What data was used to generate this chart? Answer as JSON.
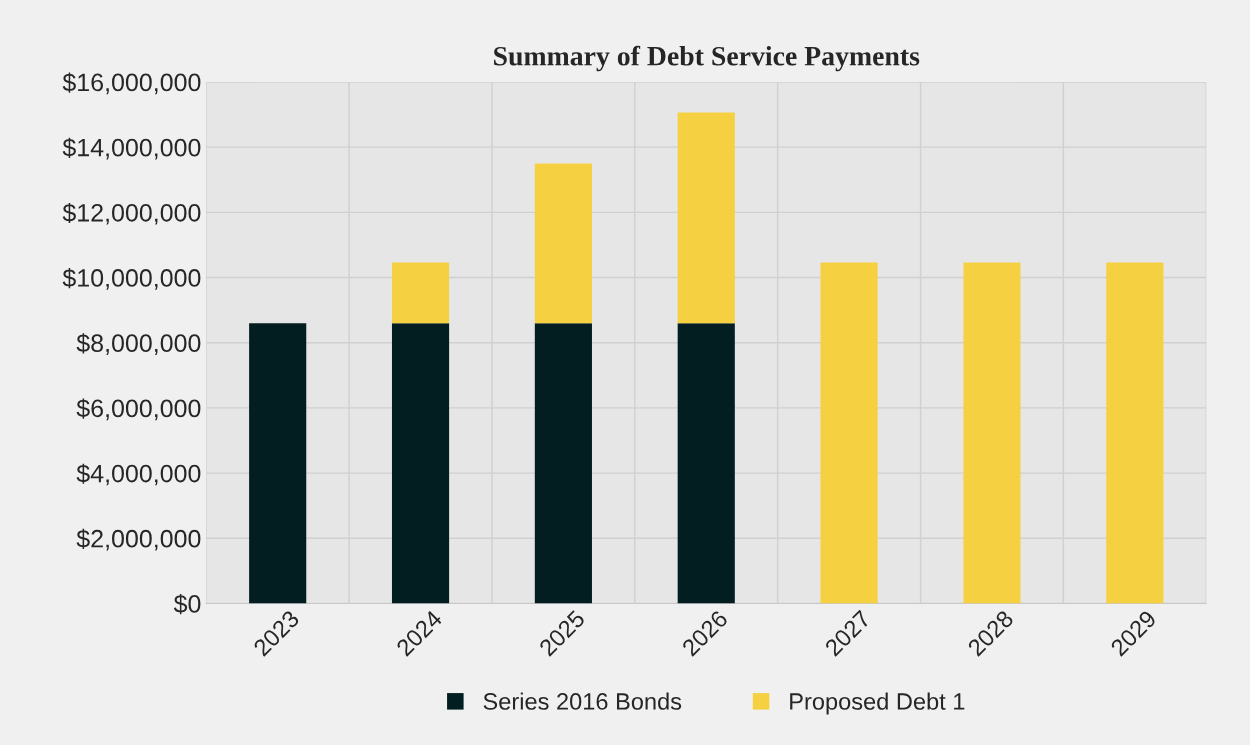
{
  "chart_data": {
    "type": "bar",
    "title": "Summary of Debt Service Payments",
    "categories": [
      "2023",
      "2024",
      "2025",
      "2026",
      "2027",
      "2028",
      "2029"
    ],
    "series": [
      {
        "name": "Series 2016 Bonds",
        "color": "#031e20",
        "values": [
          8600000,
          8600000,
          8600000,
          8600000,
          null,
          null,
          null
        ]
      },
      {
        "name": "Proposed Debt 1",
        "color": "#f5d142",
        "values": [
          null,
          1860000,
          4900000,
          6460000,
          10460000,
          10460000,
          10460000
        ]
      }
    ],
    "stacked": true,
    "ylim": [
      0,
      16000000
    ],
    "yticks": [
      {
        "value": 0,
        "label": "$0"
      },
      {
        "value": 2000000,
        "label": "$2,000,000"
      },
      {
        "value": 4000000,
        "label": "$4,000,000"
      },
      {
        "value": 6000000,
        "label": "$6,000,000"
      },
      {
        "value": 8000000,
        "label": "$8,000,000"
      },
      {
        "value": 10000000,
        "label": "$10,000,000"
      },
      {
        "value": 12000000,
        "label": "$12,000,000"
      },
      {
        "value": 14000000,
        "label": "$14,000,000"
      },
      {
        "value": 16000000,
        "label": "$16,000,000"
      }
    ],
    "grid": "y",
    "legend": "bottom"
  }
}
